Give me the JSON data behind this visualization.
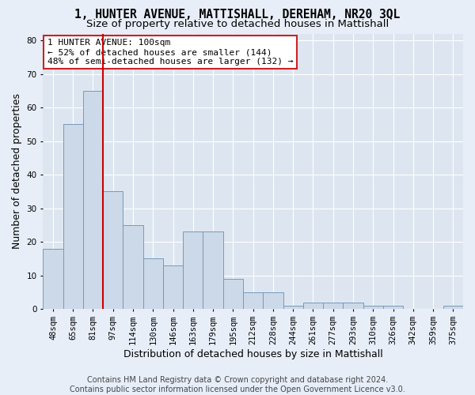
{
  "title": "1, HUNTER AVENUE, MATTISHALL, DEREHAM, NR20 3QL",
  "subtitle": "Size of property relative to detached houses in Mattishall",
  "xlabel": "Distribution of detached houses by size in Mattishall",
  "ylabel": "Number of detached properties",
  "categories": [
    "48sqm",
    "65sqm",
    "81sqm",
    "97sqm",
    "114sqm",
    "130sqm",
    "146sqm",
    "163sqm",
    "179sqm",
    "195sqm",
    "212sqm",
    "228sqm",
    "244sqm",
    "261sqm",
    "277sqm",
    "293sqm",
    "310sqm",
    "326sqm",
    "342sqm",
    "359sqm",
    "375sqm"
  ],
  "values": [
    18,
    55,
    65,
    35,
    25,
    15,
    13,
    23,
    23,
    9,
    5,
    5,
    1,
    2,
    2,
    2,
    1,
    1,
    0,
    0,
    1
  ],
  "bar_color": "#ccd9e8",
  "bar_edge_color": "#7799bb",
  "red_line_after_index": 2,
  "annotation_text": "1 HUNTER AVENUE: 100sqm\n← 52% of detached houses are smaller (144)\n48% of semi-detached houses are larger (132) →",
  "annotation_box_facecolor": "#ffffff",
  "annotation_box_edgecolor": "#cc2222",
  "ylim": [
    0,
    82
  ],
  "yticks": [
    0,
    10,
    20,
    30,
    40,
    50,
    60,
    70,
    80
  ],
  "plot_bg_color": "#dde6f0",
  "fig_bg_color": "#e8eef8",
  "grid_color": "#ffffff",
  "footer_text": "Contains HM Land Registry data © Crown copyright and database right 2024.\nContains public sector information licensed under the Open Government Licence v3.0.",
  "title_fontsize": 10.5,
  "subtitle_fontsize": 9.5,
  "xlabel_fontsize": 9,
  "ylabel_fontsize": 9,
  "tick_fontsize": 7.5,
  "annotation_fontsize": 8,
  "footer_fontsize": 7
}
